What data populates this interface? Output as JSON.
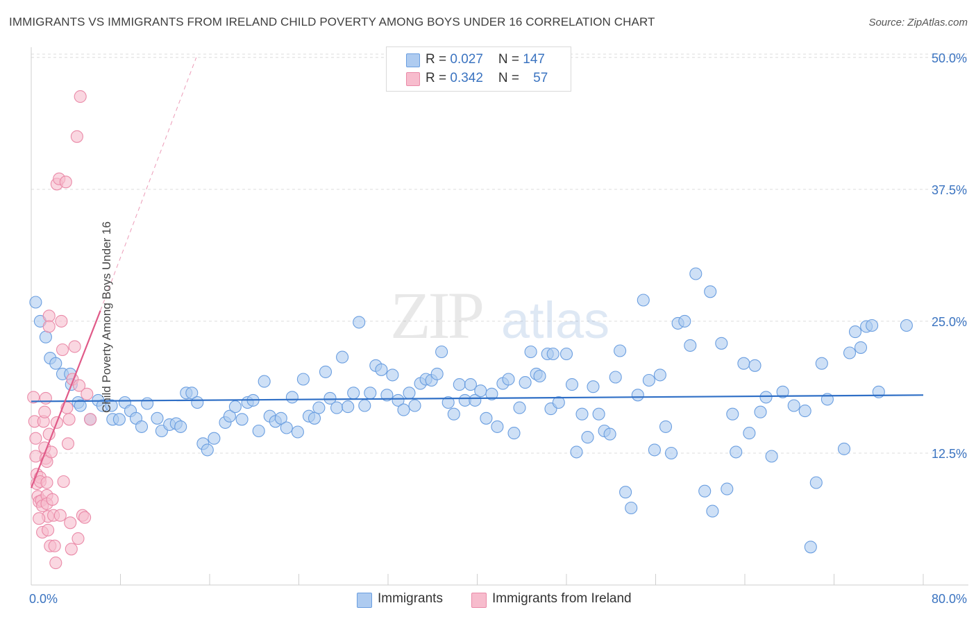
{
  "title": "IMMIGRANTS VS IMMIGRANTS FROM IRELAND CHILD POVERTY AMONG BOYS UNDER 16 CORRELATION CHART",
  "source": "Source: ZipAtlas.com",
  "watermark": {
    "zip": "ZIP",
    "atlas": "atlas"
  },
  "legend": {
    "rows": [
      {
        "r_label": "R = ",
        "r_value": "0.027",
        "n_label": "N = ",
        "n_value": "147"
      },
      {
        "r_label": "R = ",
        "r_value": "0.342",
        "n_label": "N = ",
        "n_value": "57"
      }
    ],
    "bottom": [
      "Immigrants",
      "Immigrants from Ireland"
    ]
  },
  "colors": {
    "blue_fill": "#aecbf0",
    "blue_stroke": "#6a9ee0",
    "blue_line": "#2f6fc6",
    "pink_fill": "#f7bccd",
    "pink_stroke": "#ea8aa8",
    "pink_line": "#e05a88",
    "axis_text": "#3a73c0",
    "grid": "#dcdcdc"
  },
  "chart_data": {
    "type": "scatter",
    "title": "IMMIGRANTS VS IMMIGRANTS FROM IRELAND CHILD POVERTY AMONG BOYS UNDER 16 CORRELATION CHART",
    "xlabel": "",
    "ylabel": "Child Poverty Among Boys Under 16",
    "xlim": [
      0,
      80
    ],
    "ylim": [
      0,
      51.5
    ],
    "x_tick_labels": [
      "0.0%",
      "80.0%"
    ],
    "y_ticks": [
      12.5,
      25.0,
      37.5,
      50.0
    ],
    "y_tick_labels": [
      "12.5%",
      "25.0%",
      "37.5%",
      "50.0%"
    ],
    "series": [
      {
        "name": "Immigrants",
        "color": "blue",
        "trend": {
          "x0": 0,
          "y0": 17.4,
          "x1": 80,
          "y1": 18.0
        },
        "points": [
          [
            0.4,
            26.8
          ],
          [
            0.8,
            25.0
          ],
          [
            1.3,
            23.5
          ],
          [
            1.7,
            21.5
          ],
          [
            2.2,
            21.0
          ],
          [
            2.8,
            20.0
          ],
          [
            3.5,
            20.0
          ],
          [
            3.6,
            19.0
          ],
          [
            4.2,
            17.3
          ],
          [
            4.4,
            17.0
          ],
          [
            5.3,
            15.7
          ],
          [
            6.0,
            17.5
          ],
          [
            6.4,
            17.0
          ],
          [
            7.2,
            17.0
          ],
          [
            7.3,
            15.7
          ],
          [
            7.9,
            15.7
          ],
          [
            8.4,
            17.3
          ],
          [
            8.9,
            16.5
          ],
          [
            9.4,
            15.8
          ],
          [
            9.9,
            15.0
          ],
          [
            10.4,
            17.2
          ],
          [
            11.3,
            15.8
          ],
          [
            11.7,
            14.6
          ],
          [
            12.4,
            15.2
          ],
          [
            13.0,
            15.3
          ],
          [
            13.4,
            15.0
          ],
          [
            13.9,
            18.2
          ],
          [
            14.4,
            18.2
          ],
          [
            14.9,
            17.3
          ],
          [
            15.4,
            13.4
          ],
          [
            15.8,
            12.8
          ],
          [
            16.4,
            13.9
          ],
          [
            17.4,
            15.4
          ],
          [
            17.8,
            16.0
          ],
          [
            18.3,
            16.9
          ],
          [
            18.9,
            15.7
          ],
          [
            19.4,
            17.3
          ],
          [
            19.9,
            17.5
          ],
          [
            20.4,
            14.6
          ],
          [
            20.9,
            19.3
          ],
          [
            21.4,
            16.0
          ],
          [
            21.9,
            15.5
          ],
          [
            22.4,
            15.8
          ],
          [
            22.9,
            14.9
          ],
          [
            23.4,
            17.8
          ],
          [
            23.9,
            14.5
          ],
          [
            24.4,
            19.5
          ],
          [
            24.9,
            16.0
          ],
          [
            25.4,
            15.8
          ],
          [
            25.8,
            16.8
          ],
          [
            26.4,
            20.2
          ],
          [
            26.8,
            17.7
          ],
          [
            27.4,
            16.8
          ],
          [
            27.9,
            21.6
          ],
          [
            28.4,
            16.9
          ],
          [
            28.9,
            18.2
          ],
          [
            29.4,
            24.9
          ],
          [
            29.9,
            17.0
          ],
          [
            30.4,
            18.2
          ],
          [
            30.9,
            20.8
          ],
          [
            31.4,
            20.4
          ],
          [
            31.9,
            18.0
          ],
          [
            32.4,
            19.9
          ],
          [
            32.9,
            17.5
          ],
          [
            33.4,
            16.6
          ],
          [
            33.9,
            18.2
          ],
          [
            34.4,
            17.0
          ],
          [
            34.9,
            19.1
          ],
          [
            35.4,
            19.5
          ],
          [
            35.9,
            19.4
          ],
          [
            36.4,
            20.0
          ],
          [
            36.8,
            22.1
          ],
          [
            37.4,
            17.3
          ],
          [
            37.9,
            16.2
          ],
          [
            38.4,
            19.0
          ],
          [
            38.9,
            17.5
          ],
          [
            39.4,
            19.0
          ],
          [
            39.8,
            17.5
          ],
          [
            40.3,
            18.4
          ],
          [
            40.8,
            15.8
          ],
          [
            41.3,
            18.1
          ],
          [
            41.8,
            15.0
          ],
          [
            42.3,
            19.1
          ],
          [
            42.8,
            19.5
          ],
          [
            43.3,
            14.4
          ],
          [
            43.8,
            16.8
          ],
          [
            44.3,
            19.2
          ],
          [
            44.8,
            22.1
          ],
          [
            45.3,
            20.0
          ],
          [
            45.6,
            19.8
          ],
          [
            46.3,
            21.9
          ],
          [
            46.6,
            16.7
          ],
          [
            46.8,
            21.9
          ],
          [
            47.3,
            17.3
          ],
          [
            48.0,
            21.9
          ],
          [
            48.5,
            19.0
          ],
          [
            48.9,
            12.6
          ],
          [
            49.4,
            16.2
          ],
          [
            49.9,
            14.0
          ],
          [
            50.4,
            18.8
          ],
          [
            50.9,
            16.2
          ],
          [
            51.4,
            14.6
          ],
          [
            51.9,
            14.3
          ],
          [
            52.4,
            19.7
          ],
          [
            52.8,
            22.2
          ],
          [
            53.3,
            8.8
          ],
          [
            53.8,
            7.3
          ],
          [
            54.4,
            18.0
          ],
          [
            54.9,
            27.0
          ],
          [
            55.4,
            19.4
          ],
          [
            55.9,
            12.8
          ],
          [
            56.4,
            19.9
          ],
          [
            56.9,
            15.0
          ],
          [
            57.4,
            12.5
          ],
          [
            58.0,
            24.8
          ],
          [
            58.6,
            25.0
          ],
          [
            59.1,
            22.7
          ],
          [
            59.6,
            29.5
          ],
          [
            60.4,
            8.9
          ],
          [
            60.9,
            27.8
          ],
          [
            61.1,
            7.0
          ],
          [
            61.9,
            22.9
          ],
          [
            62.4,
            9.1
          ],
          [
            62.9,
            16.2
          ],
          [
            63.2,
            12.6
          ],
          [
            63.9,
            21.0
          ],
          [
            64.4,
            14.4
          ],
          [
            64.9,
            20.8
          ],
          [
            65.4,
            16.4
          ],
          [
            65.9,
            17.8
          ],
          [
            66.4,
            12.2
          ],
          [
            67.4,
            18.3
          ],
          [
            68.4,
            17.0
          ],
          [
            69.4,
            16.5
          ],
          [
            69.9,
            3.6
          ],
          [
            70.4,
            9.7
          ],
          [
            70.9,
            21.0
          ],
          [
            71.4,
            17.6
          ],
          [
            72.9,
            12.9
          ],
          [
            73.4,
            22.0
          ],
          [
            73.9,
            24.0
          ],
          [
            74.4,
            22.5
          ],
          [
            74.9,
            24.5
          ],
          [
            75.4,
            24.6
          ],
          [
            76.0,
            18.3
          ],
          [
            78.5,
            24.6
          ]
        ]
      },
      {
        "name": "Immigrants from Ireland",
        "color": "pink",
        "trend": {
          "x0": 0,
          "y0": 9.2,
          "x1": 6.2,
          "y1": 26.0,
          "dash_x1": 14.8,
          "dash_y1": 50.0
        },
        "points": [
          [
            0.2,
            17.8
          ],
          [
            0.3,
            15.5
          ],
          [
            0.4,
            13.9
          ],
          [
            0.4,
            12.2
          ],
          [
            0.5,
            10.5
          ],
          [
            0.5,
            9.6
          ],
          [
            0.6,
            8.4
          ],
          [
            0.7,
            7.9
          ],
          [
            0.8,
            10.2
          ],
          [
            0.8,
            9.8
          ],
          [
            0.9,
            8.0
          ],
          [
            1.0,
            7.5
          ],
          [
            1.0,
            5.0
          ],
          [
            1.1,
            15.5
          ],
          [
            1.2,
            13.0
          ],
          [
            1.2,
            16.4
          ],
          [
            1.3,
            17.7
          ],
          [
            1.3,
            12.0
          ],
          [
            1.4,
            11.7
          ],
          [
            1.4,
            9.7
          ],
          [
            1.4,
            8.5
          ],
          [
            1.4,
            7.7
          ],
          [
            1.5,
            6.5
          ],
          [
            1.5,
            5.2
          ],
          [
            1.6,
            25.5
          ],
          [
            1.6,
            24.5
          ],
          [
            1.6,
            14.3
          ],
          [
            1.7,
            3.7
          ],
          [
            1.8,
            12.6
          ],
          [
            1.9,
            8.1
          ],
          [
            2.0,
            6.6
          ],
          [
            2.1,
            3.7
          ],
          [
            2.2,
            2.1
          ],
          [
            2.3,
            38.0
          ],
          [
            2.3,
            15.4
          ],
          [
            2.5,
            38.5
          ],
          [
            2.6,
            6.6
          ],
          [
            2.7,
            25.0
          ],
          [
            2.8,
            22.3
          ],
          [
            2.9,
            9.8
          ],
          [
            3.1,
            38.2
          ],
          [
            3.2,
            16.8
          ],
          [
            3.3,
            13.4
          ],
          [
            3.4,
            15.7
          ],
          [
            3.5,
            5.9
          ],
          [
            3.6,
            3.4
          ],
          [
            3.7,
            19.5
          ],
          [
            3.9,
            22.6
          ],
          [
            4.1,
            42.5
          ],
          [
            4.2,
            4.4
          ],
          [
            4.3,
            18.9
          ],
          [
            4.4,
            46.3
          ],
          [
            4.6,
            6.6
          ],
          [
            4.8,
            6.4
          ],
          [
            5.0,
            18.1
          ],
          [
            5.3,
            15.7
          ],
          [
            0.7,
            6.3
          ]
        ]
      }
    ]
  }
}
